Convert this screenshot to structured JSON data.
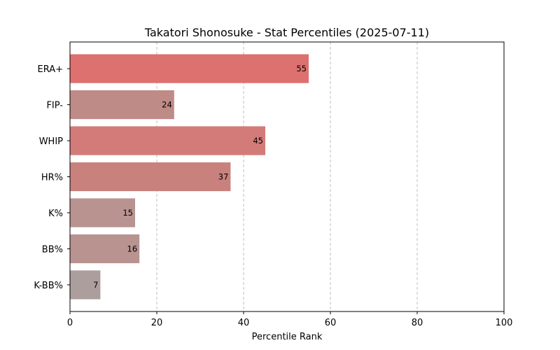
{
  "chart_data": {
    "type": "bar",
    "orientation": "horizontal",
    "title": "Takatori Shonosuke - Stat Percentiles (2025-07-11)",
    "xlabel": "Percentile Rank",
    "ylabel": "",
    "xlim": [
      0,
      100
    ],
    "xticks": [
      0,
      20,
      40,
      60,
      80,
      100
    ],
    "grid": "x-dashed",
    "categories": [
      "ERA+",
      "FIP-",
      "WHIP",
      "HR%",
      "K%",
      "BB%",
      "K-BB%"
    ],
    "values": [
      55,
      24,
      45,
      37,
      15,
      16,
      7
    ],
    "colors": [
      "#dc716f",
      "#be8b87",
      "#d27b78",
      "#c9817e",
      "#b89390",
      "#b89390",
      "#ad9e9e"
    ]
  }
}
